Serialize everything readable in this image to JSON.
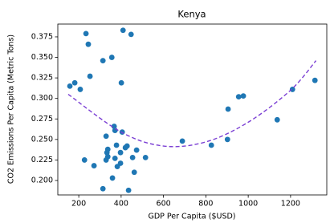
{
  "chart_data": {
    "type": "scatter",
    "title": "Kenya",
    "xlabel": "GDP Per Capita ($USD)",
    "ylabel": "CO2 Emissions Per Capita (Metric Tons)",
    "xlim": [
      101,
      1371
    ],
    "ylim": [
      0.1824,
      0.3906
    ],
    "xticks": [
      200,
      400,
      600,
      800,
      1000,
      1200
    ],
    "yticks": [
      {
        "value": 0.2,
        "label": "0.200"
      },
      0.225,
      {
        "value": 0.25,
        "label": "0.250"
      },
      0.275,
      {
        "value": 0.3,
        "label": "0.300"
      },
      0.325,
      {
        "value": 0.35,
        "label": "0.350"
      },
      0.375
    ],
    "series": [
      {
        "type": "scatter",
        "color": "#1f77b4",
        "x": [
          158,
          181,
          207,
          234,
          245,
          253,
          227,
          272,
          314,
          314,
          356,
          409,
          447,
          401,
          367,
          371,
          405,
          329,
          337,
          333,
          337,
          329,
          378,
          397,
          371,
          382,
          397,
          428,
          420,
          359,
          435,
          454,
          462,
          473,
          515,
          689,
          826,
          905,
          902,
          955,
          977,
          1137,
          1209,
          1315
        ],
        "values": [
          0.315,
          0.319,
          0.311,
          0.379,
          0.366,
          0.327,
          0.225,
          0.218,
          0.346,
          0.19,
          0.35,
          0.383,
          0.378,
          0.319,
          0.266,
          0.261,
          0.259,
          0.254,
          0.238,
          0.234,
          0.229,
          0.225,
          0.243,
          0.234,
          0.227,
          0.217,
          0.221,
          0.242,
          0.24,
          0.203,
          0.188,
          0.228,
          0.21,
          0.237,
          0.228,
          0.248,
          0.243,
          0.287,
          0.25,
          0.302,
          0.303,
          0.274,
          0.311,
          0.322
        ]
      },
      {
        "type": "line",
        "color": "#7b3fd4",
        "dashed": true,
        "x": [
          150,
          400,
          600,
          800,
          1000,
          1200,
          1320
        ],
        "values": [
          0.305,
          0.259,
          0.242,
          0.247,
          0.271,
          0.31,
          0.346
        ]
      }
    ]
  }
}
